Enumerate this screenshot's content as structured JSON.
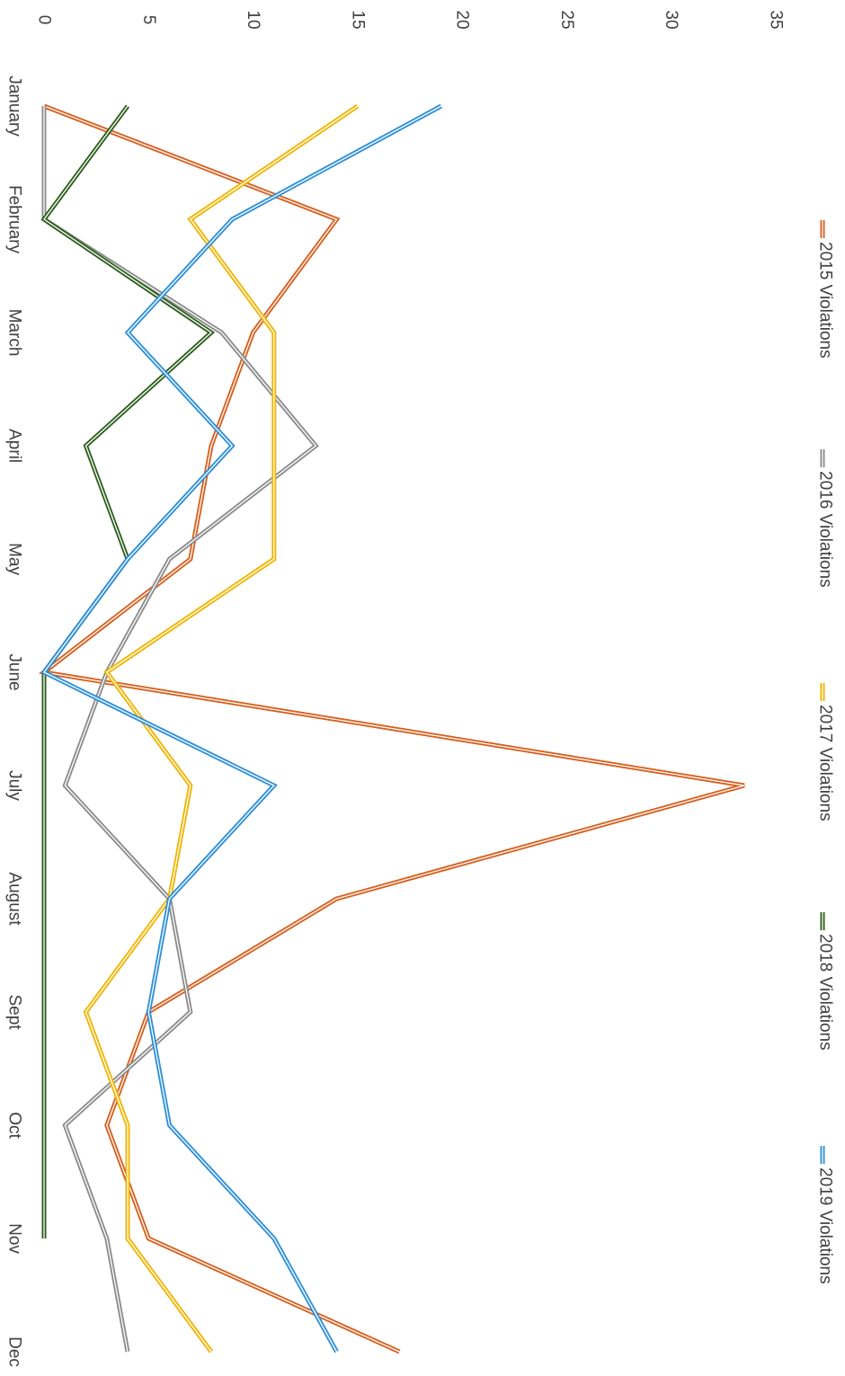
{
  "chart_data": {
    "type": "line",
    "orientation": "rotated-90-clockwise",
    "categories": [
      "January",
      "February",
      "March",
      "April",
      "May",
      "June",
      "July",
      "August",
      "Sept",
      "Oct",
      "Nov",
      "Dec"
    ],
    "ylim": [
      0,
      35
    ],
    "yticks": [
      0,
      5,
      10,
      15,
      20,
      25,
      30,
      35
    ],
    "grid": false,
    "legend_position": "top",
    "series": [
      {
        "name": "2015 Violations",
        "color": "#D95F1E",
        "values": [
          0,
          14,
          10,
          8,
          7,
          0,
          33.5,
          14,
          5,
          3,
          5,
          17
        ]
      },
      {
        "name": "2016 Violations",
        "color": "#8C8C8C",
        "values": [
          0,
          0,
          8.5,
          13,
          6,
          3,
          1,
          6,
          7,
          1,
          3,
          4
        ]
      },
      {
        "name": "2017 Violations",
        "color": "#F2B400",
        "values": [
          15,
          7,
          11,
          11,
          11,
          3,
          7,
          6,
          2,
          4,
          4,
          8
        ]
      },
      {
        "name": "2018 Violations",
        "color": "#2E5E1E",
        "values": [
          4,
          0,
          8,
          2,
          4,
          0,
          0,
          0,
          0,
          0,
          0,
          null
        ]
      },
      {
        "name": "2019 Violations",
        "color": "#2E8FD9",
        "values": [
          19,
          9,
          4,
          9,
          4,
          0,
          11,
          6,
          5,
          6,
          11,
          14
        ]
      }
    ]
  }
}
